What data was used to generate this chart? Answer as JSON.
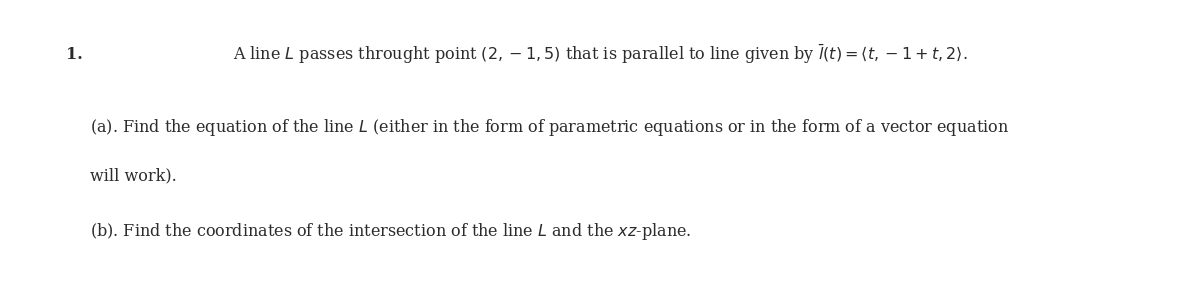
{
  "background_color": "#ffffff",
  "fig_width": 12.0,
  "fig_height": 3.04,
  "dpi": 100,
  "number_label": "1.",
  "number_fontsize": 11.5,
  "line1_text": "A line $L$ passes throught point $(2, -1, 5)$ that is parallel to line given by $\\bar{l}(t) = \\langle t, -1+t, 2\\rangle$.",
  "line2_text": "(a). Find the equation of the line $L$ (either in the form of parametric equations or in the form of a vector equation",
  "line3_text": "will work).",
  "line4_text": "(b). Find the coordinates of the intersection of the line $L$ and the $xz$-plane.",
  "fontsize": 11.5,
  "text_color": "#2b2b2b"
}
